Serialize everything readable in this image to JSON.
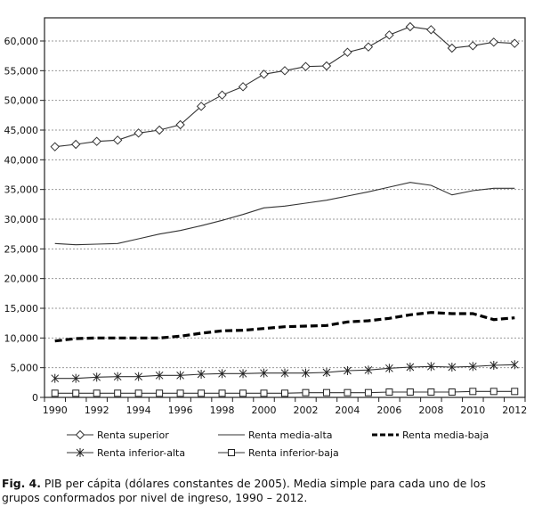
{
  "chart_data": {
    "type": "line",
    "title": "",
    "xlabel": "",
    "ylabel": "",
    "x": [
      1990,
      1991,
      1992,
      1993,
      1994,
      1995,
      1996,
      1997,
      1998,
      1999,
      2000,
      2001,
      2002,
      2003,
      2004,
      2005,
      2006,
      2007,
      2008,
      2009,
      2010,
      2011,
      2012
    ],
    "x_tick_labels": [
      "1990",
      "1992",
      "1994",
      "1996",
      "1998",
      "2000",
      "2002",
      "2004",
      "2006",
      "2008",
      "2010",
      "2012"
    ],
    "ylim": [
      0,
      65000
    ],
    "y_ticks": [
      0,
      5000,
      10000,
      15000,
      20000,
      25000,
      30000,
      35000,
      40000,
      45000,
      50000,
      55000,
      60000
    ],
    "y_tick_labels": [
      "0",
      "5,000",
      "10,000",
      "15,000",
      "20,000",
      "25,000",
      "30,000",
      "35,000",
      "40,000",
      "45,000",
      "50,000",
      "55,000",
      "60,000"
    ],
    "grid": "horizontal-dotted",
    "legend_position": "bottom",
    "series": [
      {
        "name": "Renta superior",
        "style": "solid-diamond",
        "values": [
          42200,
          42600,
          43100,
          43300,
          44500,
          45000,
          45900,
          49000,
          50900,
          52300,
          54400,
          55000,
          55700,
          55800,
          58100,
          59000,
          61000,
          62400,
          61900,
          58800,
          59200,
          59800,
          59600
        ]
      },
      {
        "name": "Renta media-alta",
        "style": "solid",
        "values": [
          25900,
          25700,
          25800,
          25900,
          26700,
          27500,
          28100,
          28900,
          29800,
          30800,
          31900,
          32200,
          32700,
          33200,
          33900,
          34600,
          35400,
          36200,
          35700,
          34100,
          34800,
          35200,
          35200
        ]
      },
      {
        "name": "Renta media-baja",
        "style": "dashed-thick",
        "values": [
          9500,
          9900,
          10000,
          10000,
          10000,
          10000,
          10300,
          10800,
          11200,
          11300,
          11600,
          11900,
          12000,
          12100,
          12700,
          12900,
          13300,
          13900,
          14300,
          14100,
          14100,
          13100,
          13400
        ]
      },
      {
        "name": "Renta inferior-alta",
        "style": "solid-asterisk",
        "values": [
          3200,
          3200,
          3400,
          3500,
          3500,
          3700,
          3700,
          3900,
          4000,
          4000,
          4100,
          4100,
          4100,
          4200,
          4500,
          4600,
          4900,
          5100,
          5200,
          5100,
          5200,
          5400,
          5500
        ]
      },
      {
        "name": "Renta inferior-baja",
        "style": "solid-square",
        "values": [
          700,
          700,
          700,
          700,
          700,
          700,
          700,
          700,
          700,
          700,
          700,
          700,
          800,
          800,
          800,
          800,
          900,
          900,
          900,
          900,
          1000,
          1000,
          1000
        ]
      }
    ]
  },
  "caption": {
    "label": "Fig. 4.",
    "line1": " PIB per cápita (dólares constantes de 2005). Media simple para cada uno de los",
    "line2": "grupos conformados por nivel de ingreso, 1990 – 2012."
  }
}
